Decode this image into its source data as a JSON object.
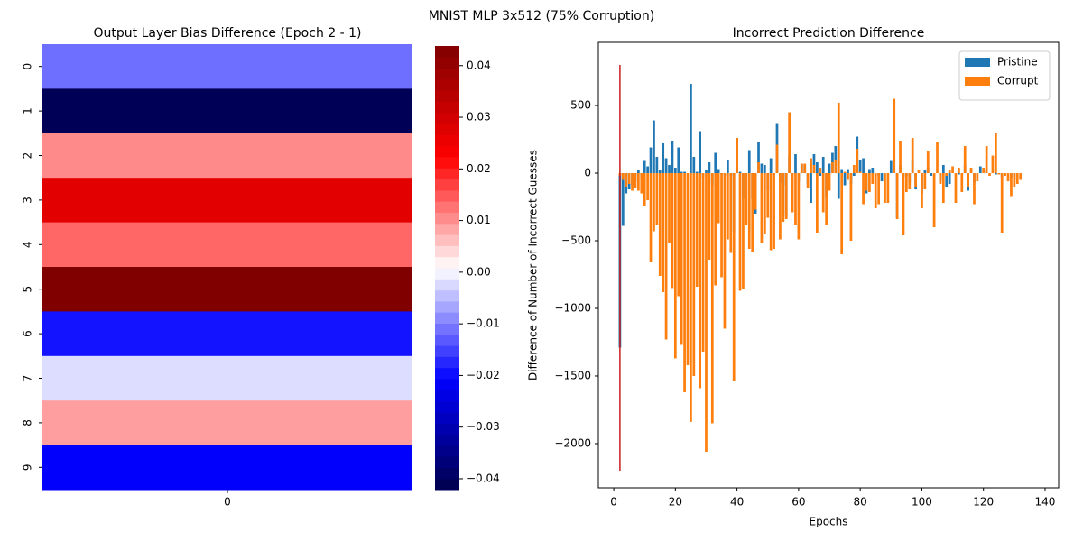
{
  "title": "MNIST MLP 3x512 (75% Corruption)",
  "chart_data": [
    {
      "type": "heatmap",
      "title": "Output Layer Bias Difference (Epoch 2 - 1)",
      "categories": [
        "0",
        "1",
        "2",
        "3",
        "4",
        "5",
        "6",
        "7",
        "8",
        "9"
      ],
      "x_categories": [
        "0"
      ],
      "values": [
        -0.0114,
        -0.041,
        0.0107,
        0.027,
        0.0137,
        0.0438,
        -0.019,
        -0.002,
        0.009,
        -0.021
      ],
      "colormap": "seismic",
      "clim": [
        -0.0421,
        0.0438
      ],
      "colorbar_ticks": [
        {
          "value": -0.04,
          "label": "−0.04"
        },
        {
          "value": -0.03,
          "label": "−0.03"
        },
        {
          "value": -0.02,
          "label": "−0.02"
        },
        {
          "value": -0.01,
          "label": "−0.01"
        },
        {
          "value": 0,
          "label": "0.00"
        },
        0.01,
        0.02,
        0.03,
        0.04
      ]
    },
    {
      "type": "bar",
      "title": "Incorrect Prediction Difference",
      "x_label": "Epochs",
      "y_label": "Difference of Number of Incorrect Guesses",
      "x": [
        2,
        3,
        4,
        5,
        6,
        7,
        8,
        9,
        10,
        11,
        12,
        13,
        14,
        15,
        16,
        17,
        18,
        19,
        20,
        21,
        22,
        23,
        24,
        25,
        26,
        27,
        28,
        29,
        30,
        31,
        32,
        33,
        34,
        35,
        36,
        37,
        38,
        39,
        40,
        41,
        42,
        43,
        44,
        45,
        46,
        47,
        48,
        49,
        50,
        51,
        52,
        53,
        54,
        55,
        56,
        57,
        58,
        59,
        60,
        61,
        62,
        63,
        64,
        65,
        66,
        67,
        68,
        69,
        70,
        71,
        72,
        73,
        74,
        75,
        76,
        77,
        78,
        79,
        80,
        81,
        82,
        83,
        84,
        85,
        86,
        87,
        88,
        89,
        90,
        91,
        92,
        93,
        94,
        95,
        96,
        97,
        98,
        99,
        100,
        101,
        102,
        103,
        104,
        105,
        106,
        107,
        108,
        109,
        110,
        111,
        112,
        113,
        114,
        115,
        116,
        117,
        118,
        119,
        120,
        121,
        122,
        123,
        124,
        125,
        126,
        127,
        128,
        129,
        130,
        131,
        132
      ],
      "series": [
        {
          "name": "Pristine",
          "color": "#1f77b4",
          "values": [
            -1290,
            -390,
            -150,
            -120,
            -90,
            -60,
            20,
            -30,
            90,
            50,
            190,
            390,
            120,
            20,
            220,
            110,
            60,
            240,
            40,
            190,
            10,
            10,
            0,
            660,
            120,
            10,
            310,
            -30,
            20,
            80,
            -90,
            150,
            30,
            -10,
            -20,
            100,
            -20,
            -430,
            260,
            10,
            -190,
            0,
            170,
            -190,
            -300,
            230,
            70,
            60,
            -130,
            110,
            -20,
            370,
            -70,
            -90,
            -320,
            130,
            -10,
            140,
            -60,
            70,
            60,
            -80,
            -220,
            140,
            80,
            -20,
            120,
            -180,
            70,
            150,
            200,
            -190,
            30,
            -90,
            30,
            -80,
            -20,
            270,
            100,
            110,
            -150,
            30,
            40,
            0,
            -20,
            -60,
            0,
            0,
            90,
            0,
            -330,
            60,
            -30,
            -20,
            -70,
            90,
            -120,
            0,
            -150,
            20,
            40,
            -20,
            0,
            0,
            -60,
            60,
            -100,
            -80,
            0,
            0,
            -10,
            0,
            60,
            -130,
            20,
            -70,
            0,
            50,
            0,
            20,
            0,
            0,
            -10,
            0,
            -30,
            0,
            0,
            -30,
            -40,
            0,
            0
          ]
        },
        {
          "name": "Corrupt",
          "color": "#ff7f0e",
          "values": [
            -20,
            -50,
            -100,
            -80,
            -130,
            -110,
            -130,
            -150,
            -240,
            -200,
            -660,
            -430,
            -380,
            -760,
            -880,
            -1230,
            -520,
            -850,
            -1370,
            -910,
            -1270,
            -1620,
            -1420,
            -1840,
            -1500,
            -840,
            -1590,
            -1320,
            -2060,
            -640,
            -1850,
            -830,
            -370,
            -770,
            -1150,
            -490,
            -590,
            -1540,
            260,
            -870,
            -860,
            -380,
            -560,
            -580,
            -270,
            80,
            -520,
            -450,
            -330,
            -570,
            -560,
            210,
            -490,
            -360,
            -340,
            450,
            -290,
            -380,
            -490,
            70,
            70,
            -110,
            110,
            60,
            -440,
            40,
            -290,
            -380,
            -130,
            80,
            100,
            520,
            -600,
            10,
            -50,
            -500,
            60,
            180,
            10,
            -230,
            -130,
            -140,
            -80,
            -260,
            -230,
            0,
            -220,
            -220,
            0,
            550,
            -340,
            240,
            -460,
            -140,
            -120,
            260,
            -100,
            20,
            -260,
            -120,
            160,
            0,
            -400,
            230,
            -80,
            -220,
            -20,
            20,
            50,
            -220,
            40,
            -140,
            200,
            -100,
            40,
            -230,
            -60,
            0,
            40,
            200,
            -20,
            130,
            300,
            -10,
            -440,
            -20,
            -60,
            -170,
            -100,
            -80,
            -50
          ]
        }
      ],
      "vlines": [
        {
          "x": 2,
          "ymin": -2200,
          "ymax": 800,
          "color": "#c81d1d"
        }
      ],
      "xlim": [
        -5,
        144.4
      ],
      "ylim": [
        -2327,
        967
      ],
      "xticks": [
        0,
        20,
        40,
        60,
        80,
        100,
        120,
        140
      ],
      "yticks": [
        {
          "value": -2000,
          "label": "−2000"
        },
        {
          "value": -1500,
          "label": "−1500"
        },
        {
          "value": -1000,
          "label": "−1000"
        },
        {
          "value": -500,
          "label": "−500"
        },
        0,
        500
      ],
      "legend": "upper right"
    }
  ]
}
